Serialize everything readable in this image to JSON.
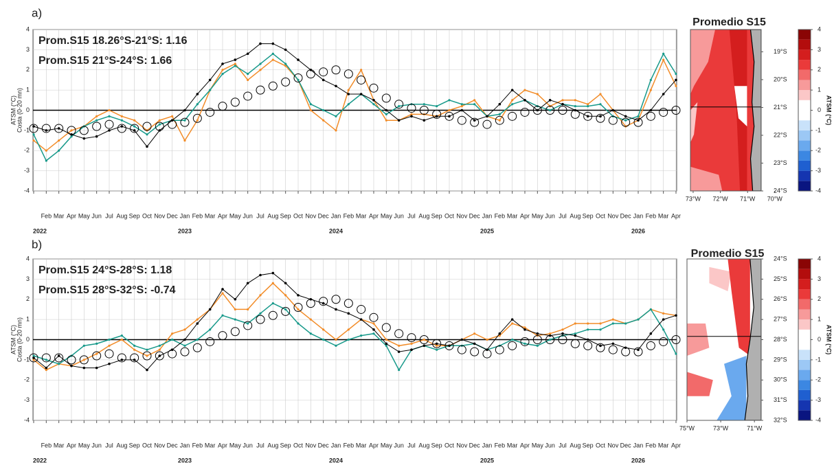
{
  "chart_data": [
    {
      "type": "line",
      "panel_label": "a)",
      "ylabel": [
        "ATSM (°C)",
        "Costa (0-20 mn)"
      ],
      "annotations": [
        {
          "text": "Prom.S15 18.26°S-21°S:  1.16",
          "color": "#f28c28"
        },
        {
          "text": "Prom.S15 21°S-24°S:  1.66",
          "color": "#17998a"
        }
      ],
      "categories": [
        null,
        "Feb",
        "Mar",
        "Apr",
        "May",
        "Jun",
        "Jul",
        "Aug",
        "Sep",
        "Oct",
        "Nov",
        "Dec",
        "Jan",
        "Feb",
        "Mar",
        "Apr",
        "May",
        "Jun",
        "Jul",
        "Aug",
        "Sep",
        "Oct",
        "Nov",
        "Dec",
        "Jan",
        "Feb",
        "Mar",
        "Apr",
        "May",
        "Jun",
        "Jul",
        "Aug",
        "Sep",
        "Oct",
        "Nov",
        "Dec",
        "Jan",
        "Feb",
        "Mar",
        "Apr",
        "May",
        "Jun",
        "Jul",
        "Aug",
        "Sep",
        "Oct",
        "Nov",
        "Dec",
        "Jan",
        "Feb",
        "Mar",
        "Apr"
      ],
      "years": [
        "2022",
        "2023",
        "2024",
        "2025",
        "2026"
      ],
      "ylim": [
        -4,
        4
      ],
      "yticks": [
        -4,
        -3,
        -2,
        -1,
        0,
        1,
        2,
        3,
        4
      ],
      "grid": true,
      "series": [
        {
          "color": "#f28c28",
          "style": "line-dots",
          "values": [
            -1.5,
            -2,
            -1.5,
            -1,
            -0.8,
            -0.3,
            0,
            -0.3,
            -0.5,
            -1,
            -0.5,
            -0.3,
            -1.5,
            -0.5,
            1,
            2,
            2.3,
            1.5,
            2,
            2.5,
            2.2,
            1.5,
            0,
            -0.5,
            -1,
            1,
            2,
            0.5,
            -0.5,
            -0.5,
            -0.2,
            -0.2,
            -0.3,
            0,
            0.2,
            0.5,
            -0.3,
            -0.5,
            0.5,
            1,
            0.8,
            0.2,
            0.5,
            0.5,
            0.3,
            0.8,
            0,
            -0.8,
            -0.5,
            1,
            2.5,
            1.2
          ]
        },
        {
          "color": "#17998a",
          "style": "line-dots",
          "values": [
            -1.2,
            -2.5,
            -2,
            -1.3,
            -0.8,
            -0.5,
            -0.3,
            -0.5,
            -0.8,
            -1.2,
            -0.7,
            -0.5,
            -0.5,
            0.3,
            1,
            1.8,
            2.2,
            1.8,
            2.3,
            2.8,
            2.3,
            1.5,
            0.3,
            0,
            -0.3,
            0.3,
            0.8,
            0.3,
            -0.2,
            0.2,
            0.3,
            0.3,
            0.2,
            0.5,
            0.3,
            0.3,
            -0.3,
            -0.2,
            0.3,
            0.5,
            0.2,
            0,
            0.3,
            0.2,
            0.2,
            0.3,
            -0.3,
            -0.5,
            -0.3,
            1.5,
            2.8,
            1.8
          ]
        },
        {
          "color": "#000000",
          "style": "line-markers",
          "values": [
            -0.8,
            -1,
            -0.9,
            -1.2,
            -1.4,
            -1.3,
            -1,
            -0.8,
            -1,
            -1.8,
            -1,
            -0.5,
            0,
            0.8,
            1.5,
            2.3,
            2.5,
            2.8,
            3.3,
            3.3,
            3,
            2.5,
            2,
            1.5,
            1.2,
            0.8,
            0.8,
            0.5,
            0,
            -0.5,
            -0.3,
            -0.5,
            -0.3,
            -0.3,
            0,
            -0.5,
            -0.3,
            0.3,
            1,
            0.5,
            0,
            0.5,
            0.3,
            0,
            -0.3,
            -0.3,
            0,
            -0.3,
            -0.5,
            0,
            0.8,
            1.5
          ]
        },
        {
          "color": "#000000",
          "style": "circles",
          "values": [
            -0.9,
            -0.9,
            -0.9,
            -1,
            -1,
            -0.8,
            -0.7,
            -0.9,
            -0.9,
            -0.8,
            -0.8,
            -0.7,
            -0.6,
            -0.4,
            -0.1,
            0.2,
            0.4,
            0.7,
            1,
            1.2,
            1.4,
            1.6,
            1.8,
            1.9,
            2,
            1.8,
            1.5,
            1.1,
            0.6,
            0.3,
            0.1,
            0,
            -0.2,
            -0.3,
            -0.5,
            -0.6,
            -0.7,
            -0.5,
            -0.3,
            -0.1,
            0,
            0,
            0,
            -0.2,
            -0.3,
            -0.4,
            -0.5,
            -0.6,
            -0.6,
            -0.3,
            -0.1,
            0
          ]
        }
      ]
    },
    {
      "type": "map",
      "title": "Promedio S15",
      "variant": "north",
      "xlim": [
        -73.1,
        -70.5
      ],
      "xticks": [
        {
          "value": -73,
          "label": "73°W"
        },
        {
          "value": -72,
          "label": "72°W"
        },
        {
          "value": -71,
          "label": "71°W"
        },
        {
          "value": -70,
          "label": "70°W"
        }
      ],
      "ylim": [
        -24,
        -18.2
      ],
      "yticks": [
        {
          "value": -19,
          "label": "19°S"
        },
        {
          "value": -20,
          "label": "20°S"
        },
        {
          "value": -21,
          "label": "21°S"
        },
        {
          "value": -22,
          "label": "22°S"
        },
        {
          "value": -23,
          "label": "23°S"
        },
        {
          "value": -24,
          "label": "24°S"
        }
      ],
      "colorbar": {
        "label": "ATSM (°C)",
        "ticks": [
          -4,
          -3,
          -2,
          -1,
          0,
          1,
          2,
          3,
          4
        ],
        "colors": [
          "#0a1580",
          "#1535b0",
          "#1f5fd0",
          "#3c87e2",
          "#6aa9ee",
          "#9cc8f5",
          "#c9e2fa",
          "#ffffff",
          "#ffffff",
          "#fbc7c7",
          "#f79a9a",
          "#f26a6a",
          "#ea3a3a",
          "#d41e1e",
          "#b30d0d",
          "#8a0505"
        ]
      }
    },
    {
      "type": "line",
      "panel_label": "b)",
      "ylabel": [
        "ATSM (°C)",
        "Costa (0-20 mn)"
      ],
      "annotations": [
        {
          "text": "Prom.S15 24°S-28°S:  1.18",
          "color": "#f28c28"
        },
        {
          "text": "Prom.S15 28°S-32°S:  -0.74",
          "color": "#17998a"
        }
      ],
      "categories": [
        null,
        "Feb",
        "Mar",
        "Apr",
        "May",
        "Jun",
        "Jul",
        "Aug",
        "Sep",
        "Oct",
        "Nov",
        "Dec",
        "Jan",
        "Feb",
        "Mar",
        "Apr",
        "May",
        "Jun",
        "Jul",
        "Aug",
        "Sep",
        "Oct",
        "Nov",
        "Dec",
        "Jan",
        "Feb",
        "Mar",
        "Apr",
        "May",
        "Jun",
        "Jul",
        "Aug",
        "Sep",
        "Oct",
        "Nov",
        "Dec",
        "Jan",
        "Feb",
        "Mar",
        "Apr",
        "May",
        "Jun",
        "Jul",
        "Aug",
        "Sep",
        "Oct",
        "Nov",
        "Dec",
        "Jan",
        "Feb",
        "Mar",
        "Apr"
      ],
      "years": [
        "2022",
        "2023",
        "2024",
        "2025",
        "2026"
      ],
      "ylim": [
        -4,
        4
      ],
      "yticks": [
        -4,
        -3,
        -2,
        -1,
        0,
        1,
        2,
        3,
        4
      ],
      "grid": true,
      "series": [
        {
          "color": "#f28c28",
          "style": "line-dots",
          "values": [
            -1,
            -1.5,
            -1.2,
            -1.3,
            -1,
            -0.7,
            -0.3,
            0,
            -0.5,
            -0.8,
            -0.5,
            0.3,
            0.5,
            1,
            1.5,
            2.3,
            1.5,
            1.5,
            2.2,
            2.8,
            2.2,
            1.5,
            1,
            0.5,
            0,
            0.5,
            1,
            0.8,
            0,
            -0.3,
            -0.2,
            0,
            -0.3,
            -0.3,
            0,
            0.3,
            0,
            0.2,
            0.8,
            0.6,
            0.2,
            0.3,
            0.5,
            0.8,
            0.8,
            0.8,
            1,
            0.8,
            1,
            1.5,
            1.3,
            1.2
          ]
        },
        {
          "color": "#17998a",
          "style": "line-dots",
          "values": [
            -0.8,
            -1,
            -1.2,
            -0.8,
            -0.3,
            -0.2,
            0,
            0.2,
            -0.3,
            -0.5,
            -0.3,
            0,
            -0.3,
            0,
            0.5,
            1.2,
            1,
            0.8,
            1.3,
            1.8,
            1.5,
            0.8,
            0.3,
            0,
            -0.3,
            0,
            0.2,
            0.3,
            -0.3,
            -1.5,
            -0.5,
            -0.3,
            -0.5,
            -0.3,
            -0.3,
            -0.2,
            -0.5,
            -0.3,
            0,
            -0.2,
            -0.3,
            0,
            0.2,
            0.3,
            0.5,
            0.5,
            0.8,
            0.8,
            1,
            1.5,
            0.5,
            -0.7
          ]
        },
        {
          "color": "#000000",
          "style": "line-markers",
          "values": [
            -0.9,
            -1.4,
            -0.8,
            -1.3,
            -1.4,
            -1.4,
            -1.2,
            -1,
            -1,
            -1.5,
            -0.8,
            -0.5,
            0,
            0.8,
            1.5,
            2.5,
            2,
            2.8,
            3.2,
            3.3,
            2.8,
            2.2,
            2,
            1.8,
            1.5,
            1.3,
            1,
            0.5,
            -0.2,
            -0.6,
            -0.5,
            -0.3,
            -0.2,
            -0.3,
            0,
            -0.2,
            -0.5,
            0.3,
            1,
            0.5,
            0.3,
            0.2,
            0.3,
            0.2,
            0,
            -0.3,
            -0.2,
            -0.4,
            -0.5,
            0.3,
            1,
            1.2
          ]
        },
        {
          "color": "#000000",
          "style": "circles",
          "values": [
            -0.9,
            -0.9,
            -0.9,
            -1,
            -1,
            -0.8,
            -0.7,
            -0.9,
            -0.9,
            -0.8,
            -0.8,
            -0.7,
            -0.6,
            -0.4,
            -0.1,
            0.2,
            0.4,
            0.7,
            1,
            1.2,
            1.4,
            1.6,
            1.8,
            1.9,
            2,
            1.8,
            1.5,
            1.1,
            0.6,
            0.3,
            0.1,
            0,
            -0.2,
            -0.3,
            -0.5,
            -0.6,
            -0.7,
            -0.5,
            -0.3,
            -0.1,
            0,
            0,
            0,
            -0.2,
            -0.3,
            -0.4,
            -0.5,
            -0.6,
            -0.6,
            -0.3,
            -0.1,
            0
          ]
        }
      ]
    },
    {
      "type": "map",
      "title": "Promedio S15",
      "variant": "south",
      "xlim": [
        -75,
        -70.6
      ],
      "xticks": [
        {
          "value": -75,
          "label": "75°W"
        },
        {
          "value": -73,
          "label": "73°W"
        },
        {
          "value": -71,
          "label": "71°W"
        }
      ],
      "ylim": [
        -32,
        -24
      ],
      "yticks": [
        {
          "value": -24,
          "label": "24°S"
        },
        {
          "value": -25,
          "label": "25°S"
        },
        {
          "value": -26,
          "label": "26°S"
        },
        {
          "value": -27,
          "label": "27°S"
        },
        {
          "value": -28,
          "label": "28°S"
        },
        {
          "value": -29,
          "label": "29°S"
        },
        {
          "value": -30,
          "label": "30°S"
        },
        {
          "value": -31,
          "label": "31°S"
        },
        {
          "value": -32,
          "label": "32°S"
        }
      ],
      "colorbar": {
        "label": "ATSM (°C)",
        "ticks": [
          -4,
          -3,
          -2,
          -1,
          0,
          1,
          2,
          3,
          4
        ],
        "colors": [
          "#0a1580",
          "#1535b0",
          "#1f5fd0",
          "#3c87e2",
          "#6aa9ee",
          "#9cc8f5",
          "#c9e2fa",
          "#ffffff",
          "#ffffff",
          "#fbc7c7",
          "#f79a9a",
          "#f26a6a",
          "#ea3a3a",
          "#d41e1e",
          "#b30d0d",
          "#8a0505"
        ]
      }
    }
  ]
}
